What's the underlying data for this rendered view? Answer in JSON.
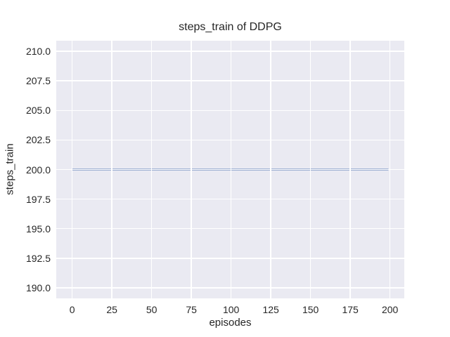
{
  "colors": {
    "figure_background": "#ffffff",
    "axes_background": "#eaeaf2",
    "grid_color": "#ffffff",
    "text_color": "#262626",
    "line_color": "#4c72b0"
  },
  "chart_data": {
    "type": "line",
    "title": "steps_train of DDPG",
    "xlabel": "episodes",
    "ylabel": "steps_train",
    "xlim": [
      -10,
      209
    ],
    "ylim": [
      189.1,
      210.9
    ],
    "xticks": {
      "values": [
        0,
        25,
        50,
        75,
        100,
        125,
        150,
        175,
        200
      ],
      "labels": [
        "0",
        "25",
        "50",
        "75",
        "100",
        "125",
        "150",
        "175",
        "200"
      ]
    },
    "yticks": {
      "values": [
        190.0,
        192.5,
        195.0,
        197.5,
        200.0,
        202.5,
        205.0,
        207.5,
        210.0
      ],
      "labels": [
        "190.0",
        "192.5",
        "195.0",
        "197.5",
        "200.0",
        "202.5",
        "205.0",
        "207.5",
        "210.0"
      ]
    },
    "grid": true,
    "legend": "none",
    "series": [
      {
        "name": "steps_train",
        "color": "#4c72b0",
        "x": [
          0,
          199
        ],
        "y": [
          200,
          200
        ]
      }
    ]
  }
}
